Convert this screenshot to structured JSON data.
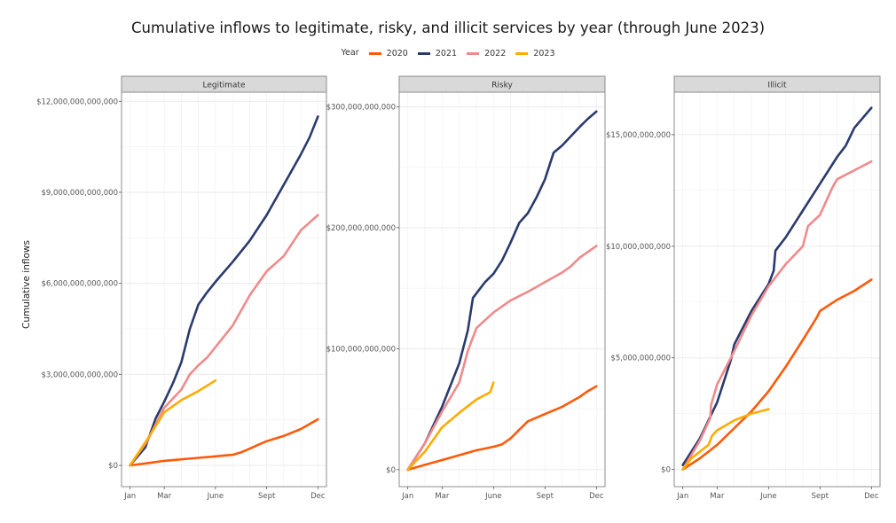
{
  "chart_data": [
    {
      "type": "line",
      "panel": "Legitimate",
      "title": "Legitimate",
      "xlabel": "",
      "ylabel": "Cumulative inflows",
      "x_ticks": [
        {
          "label": "Jan",
          "value": 0
        },
        {
          "label": "Mar",
          "value": 2
        },
        {
          "label": "June",
          "value": 5
        },
        {
          "label": "Sept",
          "value": 8
        },
        {
          "label": "Dec",
          "value": 11
        }
      ],
      "y_ticks": [
        {
          "label": "$0",
          "value": 0
        },
        {
          "label": "$3,000,000,000,000",
          "value": 3000000000000
        },
        {
          "label": "$6,000,000,000,000",
          "value": 6000000000000
        },
        {
          "label": "$9,000,000,000,000",
          "value": 9000000000000
        },
        {
          "label": "$12,000,000,000,000",
          "value": 12000000000000
        }
      ],
      "ylim": [
        -700000000000,
        12300000000000
      ],
      "xlim": [
        -0.5,
        11.5
      ],
      "series": [
        {
          "name": "2020",
          "x": [
            0,
            1,
            2,
            3,
            4,
            5,
            6,
            6.5,
            7,
            7.5,
            8,
            9,
            10,
            11
          ],
          "values": [
            0,
            70000000000,
            150000000000,
            200000000000,
            250000000000,
            300000000000,
            350000000000,
            430000000000,
            550000000000,
            680000000000,
            800000000000,
            970000000000,
            1200000000000,
            1520000000000
          ]
        },
        {
          "name": "2021",
          "x": [
            0,
            0.9,
            1.5,
            2,
            2.5,
            3,
            3.5,
            4,
            4.5,
            5,
            6,
            7,
            8,
            9,
            10,
            10.5,
            11
          ],
          "values": [
            0,
            600000000000,
            1550000000000,
            2100000000000,
            2700000000000,
            3400000000000,
            4500000000000,
            5300000000000,
            5700000000000,
            6050000000000,
            6700000000000,
            7400000000000,
            8250000000000,
            9250000000000,
            10250000000000,
            10800000000000,
            11500000000000
          ]
        },
        {
          "name": "2022",
          "x": [
            0,
            1,
            2,
            3,
            3.5,
            4,
            4.5,
            5,
            6,
            7,
            8,
            9,
            10,
            10.5,
            11
          ],
          "values": [
            0,
            800000000000,
            1900000000000,
            2500000000000,
            3000000000000,
            3300000000000,
            3550000000000,
            3900000000000,
            4600000000000,
            5600000000000,
            6400000000000,
            6900000000000,
            7750000000000,
            8000000000000,
            8250000000000
          ]
        },
        {
          "name": "2023",
          "x": [
            0,
            1,
            2,
            3,
            4,
            5
          ],
          "values": [
            0,
            850000000000,
            1750000000000,
            2150000000000,
            2450000000000,
            2800000000000
          ]
        }
      ]
    },
    {
      "type": "line",
      "panel": "Risky",
      "title": "Risky",
      "xlabel": "",
      "ylabel": "",
      "x_ticks": [
        {
          "label": "Jan",
          "value": 0
        },
        {
          "label": "Mar",
          "value": 2
        },
        {
          "label": "June",
          "value": 5
        },
        {
          "label": "Sept",
          "value": 8
        },
        {
          "label": "Dec",
          "value": 11
        }
      ],
      "y_ticks": [
        {
          "label": "$0",
          "value": 0
        },
        {
          "label": "$100,000,000,000",
          "value": 100000000000
        },
        {
          "label": "$200,000,000,000",
          "value": 200000000000
        },
        {
          "label": "$300,000,000,000",
          "value": 300000000000
        }
      ],
      "ylim": [
        -14000000000,
        312000000000
      ],
      "xlim": [
        -0.5,
        11.5
      ],
      "series": [
        {
          "name": "2020",
          "x": [
            0,
            1,
            2,
            3,
            4,
            5,
            5.5,
            6,
            6.5,
            7,
            7.5,
            8,
            9,
            10,
            10.5,
            11
          ],
          "values": [
            0,
            4000000000,
            8000000000,
            12000000000,
            16000000000,
            19000000000,
            21000000000,
            26000000000,
            33000000000,
            40000000000,
            43000000000,
            46000000000,
            52000000000,
            60000000000,
            65000000000,
            69000000000
          ]
        },
        {
          "name": "2021",
          "x": [
            0,
            1,
            2,
            3,
            3.5,
            3.8,
            4.5,
            5,
            5.5,
            6,
            6.5,
            7,
            7.5,
            8,
            8.5,
            9,
            10,
            10.5,
            11
          ],
          "values": [
            0,
            22000000000,
            52000000000,
            88000000000,
            115000000000,
            142000000000,
            155000000000,
            162000000000,
            173000000000,
            188000000000,
            204000000000,
            212000000000,
            225000000000,
            240000000000,
            262000000000,
            268000000000,
            283000000000,
            290000000000,
            296000000000
          ]
        },
        {
          "name": "2022",
          "x": [
            0,
            1,
            2,
            3,
            3.5,
            4,
            5,
            6,
            7,
            8,
            9,
            9.5,
            10,
            11
          ],
          "values": [
            0,
            22000000000,
            48000000000,
            72000000000,
            98000000000,
            117000000000,
            130000000000,
            140000000000,
            147000000000,
            155000000000,
            163000000000,
            168000000000,
            175000000000,
            185000000000
          ]
        },
        {
          "name": "2023",
          "x": [
            0,
            1,
            2,
            3,
            4,
            4.8,
            5
          ],
          "values": [
            0,
            15000000000,
            35000000000,
            47000000000,
            58000000000,
            64000000000,
            72000000000
          ]
        }
      ]
    },
    {
      "type": "line",
      "panel": "Illicit",
      "title": "Illicit",
      "xlabel": "",
      "ylabel": "",
      "x_ticks": [
        {
          "label": "Jan",
          "value": 0
        },
        {
          "label": "Mar",
          "value": 2
        },
        {
          "label": "June",
          "value": 5
        },
        {
          "label": "Sept",
          "value": 8
        },
        {
          "label": "Dec",
          "value": 11
        }
      ],
      "y_ticks": [
        {
          "label": "$0",
          "value": 0
        },
        {
          "label": "$5,000,000,000",
          "value": 5000000000
        },
        {
          "label": "$10,000,000,000",
          "value": 10000000000
        },
        {
          "label": "$15,000,000,000",
          "value": 15000000000
        }
      ],
      "ylim": [
        -770000000,
        16900000000
      ],
      "xlim": [
        -0.5,
        11.5
      ],
      "series": [
        {
          "name": "2020",
          "x": [
            0,
            1,
            2,
            3,
            4,
            5,
            6,
            7,
            7.8,
            8,
            9,
            10,
            11
          ],
          "values": [
            0,
            500000000,
            1100000000,
            1850000000,
            2600000000,
            3500000000,
            4600000000,
            5800000000,
            6800000000,
            7100000000,
            7600000000,
            8000000000,
            8500000000
          ]
        },
        {
          "name": "2021",
          "x": [
            0,
            1,
            2,
            2.8,
            3,
            4,
            5,
            5.3,
            5.4,
            6,
            7,
            8,
            9,
            9.5,
            10,
            11
          ],
          "values": [
            200000000,
            1400000000,
            3000000000,
            4900000000,
            5600000000,
            7100000000,
            8300000000,
            8900000000,
            9800000000,
            10400000000,
            11600000000,
            12800000000,
            14000000000,
            14500000000,
            15300000000,
            16200000000
          ]
        },
        {
          "name": "2022",
          "x": [
            0,
            1,
            1.6,
            1.65,
            2,
            3,
            4,
            5,
            6,
            7,
            7.3,
            8,
            8.7,
            9,
            10,
            11
          ],
          "values": [
            0,
            1300000000,
            2300000000,
            2900000000,
            3800000000,
            5300000000,
            6900000000,
            8200000000,
            9200000000,
            10000000000,
            10900000000,
            11400000000,
            12600000000,
            13000000000,
            13400000000,
            13800000000
          ]
        },
        {
          "name": "2023",
          "x": [
            0,
            0.5,
            1.5,
            1.7,
            2,
            3,
            4,
            5
          ],
          "values": [
            0,
            500000000,
            1100000000,
            1500000000,
            1750000000,
            2200000000,
            2500000000,
            2700000000
          ]
        }
      ]
    }
  ],
  "title": "Cumulative inflows to legitimate, risky, and illicit services by year (through June 2023)",
  "ylabel": "Cumulative inflows",
  "legend": {
    "title": "Year",
    "placement": "top-center",
    "items": [
      {
        "label": "2020",
        "color": "#ff5a0a"
      },
      {
        "label": "2021",
        "color": "#2b3a6e"
      },
      {
        "label": "2022",
        "color": "#f08a8c"
      },
      {
        "label": "2023",
        "color": "#ffab00"
      }
    ]
  },
  "colors": {
    "2020": "#ff5a0a",
    "2021": "#2b3a6e",
    "2022": "#f08a8c",
    "2023": "#ffab00",
    "strip_bg": "#d9d9d9",
    "grid": "#ececec"
  }
}
